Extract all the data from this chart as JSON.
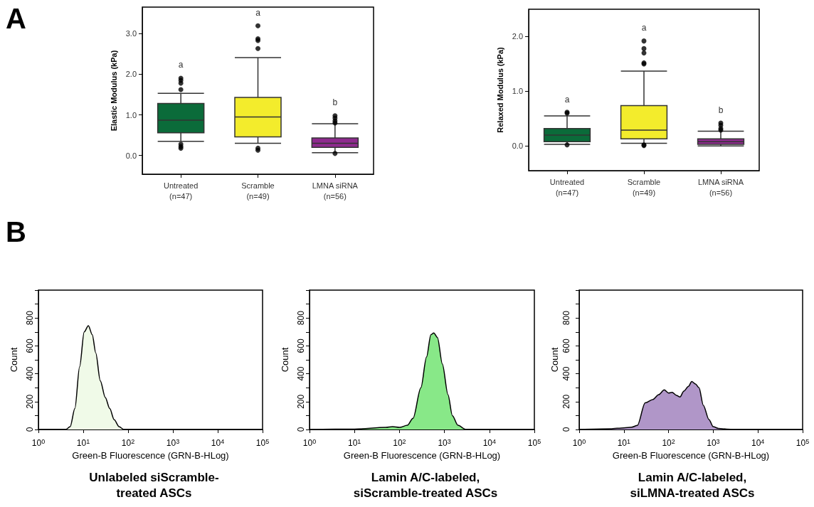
{
  "chart_data": [
    {
      "type": "box",
      "ylabel": "Elastic Modulus (kPa)",
      "categories": [
        "Untreated\n(n=47)",
        "Scramble\n(n=49)",
        "LMNA siRNA\n(n=56)"
      ],
      "colors": [
        "#0b6b3a",
        "#f3ec2c",
        "#8e2a8e"
      ],
      "boxes": [
        {
          "low": 0.35,
          "q1": 0.56,
          "median": 0.87,
          "q3": 1.28,
          "high": 1.53,
          "outliers": [
            1.9,
            1.85,
            1.78,
            1.62,
            0.28,
            0.22,
            0.18
          ]
        },
        {
          "low": 0.3,
          "q1": 0.46,
          "median": 0.95,
          "q3": 1.43,
          "high": 2.41,
          "outliers": [
            3.19,
            2.87,
            2.83,
            2.63,
            0.18,
            0.13
          ]
        },
        {
          "low": 0.07,
          "q1": 0.2,
          "median": 0.3,
          "q3": 0.43,
          "high": 0.78,
          "outliers": [
            0.98,
            0.92,
            0.85,
            0.8,
            0.05
          ]
        }
      ],
      "ylim": [
        -0.46,
        3.65
      ],
      "yticks": [
        {
          "value": 0,
          "label": "0.0"
        },
        {
          "value": 1,
          "label": "1.0"
        },
        {
          "value": 2,
          "label": "2.0"
        },
        {
          "value": 3,
          "label": "3.0"
        }
      ],
      "annotations": [
        "A",
        "a",
        "a",
        "b"
      ]
    },
    {
      "type": "box",
      "ylabel": "Relaxed Modulus (kPa)",
      "categories": [
        "Untreated\n(n=47)",
        "Scramble\n(n=49)",
        "LMNA siRNA\n(n=56)"
      ],
      "colors": [
        "#0b6b3a",
        "#f3ec2c",
        "#8e2a8e"
      ],
      "boxes": [
        {
          "low": 0.03,
          "q1": 0.08,
          "median": 0.2,
          "q3": 0.32,
          "high": 0.55,
          "outliers": [
            0.62,
            0.6,
            0.02
          ]
        },
        {
          "low": 0.05,
          "q1": 0.13,
          "median": 0.29,
          "q3": 0.74,
          "high": 1.37,
          "outliers": [
            1.92,
            1.78,
            1.7,
            1.52,
            1.5,
            0.02,
            0.01
          ]
        },
        {
          "low": 0.0,
          "q1": 0.03,
          "median": 0.08,
          "q3": 0.13,
          "high": 0.27,
          "outliers": [
            0.42,
            0.38,
            0.32,
            0.29
          ]
        }
      ],
      "ylim": [
        -0.45,
        2.5
      ],
      "yticks": [
        {
          "value": 0,
          "label": "0.0"
        },
        {
          "value": 1,
          "label": "1.0"
        },
        {
          "value": 2,
          "label": "2.0"
        }
      ],
      "annotations": [
        "a",
        "a",
        "b"
      ]
    },
    {
      "type": "area",
      "title": "Unlabeled siScramble-\ntreated ASCs",
      "xlabel": "Green-B Fluorescence (GRN-B-HLog)",
      "ylabel": "Count",
      "log": "x",
      "x": [
        1,
        4.1,
        5.1,
        6.5,
        8.3,
        10.5,
        13,
        15.9,
        19,
        24,
        31,
        39,
        49,
        63,
        80,
        100000
      ],
      "series": [
        {
          "color": "#f0fae8",
          "values": [
            0,
            0,
            20,
            150,
            450,
            700,
            745,
            680,
            550,
            350,
            230,
            150,
            70,
            20,
            0,
            0
          ]
        }
      ],
      "xlim": [
        1,
        100000
      ],
      "xticks": [
        {
          "value": 1,
          "label": "10$^{0}$"
        },
        {
          "value": 10,
          "label": "10$^{1}$"
        },
        {
          "value": 100,
          "label": "10$^{2}$"
        },
        {
          "value": 1000,
          "label": "10$^{3}$"
        },
        {
          "value": 10000,
          "label": "10$^{4}$"
        },
        {
          "value": 100000,
          "label": "10$^{5}$"
        }
      ],
      "ylim": [
        0,
        1000
      ],
      "yticks": [
        0,
        {
          "value": 100,
          "label": null
        },
        200,
        {
          "value": 300,
          "label": null
        },
        400,
        {
          "value": 500,
          "label": null
        },
        600,
        {
          "value": 700,
          "label": null
        },
        800,
        {
          "value": 900,
          "label": null
        },
        {
          "value": 1000,
          "label": null
        }
      ],
      "annotations": [
        "B"
      ]
    },
    {
      "type": "area",
      "title": "Lamin A/C-labeled,\nsiScramble-treated ASCs",
      "xlabel": "Green-B Fluorescence (GRN-B-HLog)",
      "ylabel": "Count",
      "log": "x",
      "x": [
        1,
        10,
        50,
        70,
        100,
        150,
        200,
        300,
        400,
        500,
        580,
        700,
        900,
        1200,
        1500,
        2000,
        3000,
        100000
      ],
      "series": [
        {
          "color": "#88e888",
          "values": [
            0,
            3,
            15,
            20,
            15,
            30,
            80,
            300,
            520,
            680,
            693,
            660,
            470,
            250,
            100,
            30,
            0,
            0
          ]
        }
      ],
      "xlim": [
        1,
        100000
      ],
      "xticks": [
        {
          "value": 1,
          "label": "10$^{0}$"
        },
        {
          "value": 10,
          "label": "10$^{1}$"
        },
        {
          "value": 100,
          "label": "10$^{2}$"
        },
        {
          "value": 1000,
          "label": "10$^{3}$"
        },
        {
          "value": 10000,
          "label": "10$^{4}$"
        },
        {
          "value": 100000,
          "label": "10$^{5}$"
        }
      ],
      "ylim": [
        0,
        1000
      ],
      "yticks": [
        0,
        {
          "value": 100,
          "label": null
        },
        200,
        {
          "value": 300,
          "label": null
        },
        400,
        {
          "value": 500,
          "label": null
        },
        600,
        {
          "value": 700,
          "label": null
        },
        800,
        {
          "value": 900,
          "label": null
        },
        {
          "value": 1000,
          "label": null
        }
      ]
    },
    {
      "type": "area",
      "title": "Lamin A/C-labeled,\nsiLMNA-treated ASCs",
      "xlabel": "Green-B Fluorescence (GRN-B-HLog)",
      "ylabel": "Count",
      "log": "x",
      "x": [
        1,
        5,
        10,
        15,
        20,
        30,
        45,
        60,
        80,
        100,
        120,
        150,
        180,
        220,
        280,
        330,
        400,
        480,
        600,
        800,
        1000,
        1300,
        2000,
        3000,
        100000
      ],
      "series": [
        {
          "color": "#b096c8",
          "values": [
            0,
            5,
            12,
            17,
            29,
            191,
            216,
            250,
            284,
            262,
            267,
            245,
            233,
            276,
            310,
            344,
            327,
            300,
            174,
            72,
            20,
            8,
            3,
            0,
            0
          ]
        }
      ],
      "xlim": [
        1,
        100000
      ],
      "xticks": [
        {
          "value": 1,
          "label": "10$^{0}$"
        },
        {
          "value": 10,
          "label": "10$^{1}$"
        },
        {
          "value": 100,
          "label": "10$^{2}$"
        },
        {
          "value": 1000,
          "label": "10$^{3}$"
        },
        {
          "value": 10000,
          "label": "10$^{4}$"
        },
        {
          "value": 100000,
          "label": "10$^{5}$"
        }
      ],
      "ylim": [
        0,
        1000
      ],
      "yticks": [
        0,
        {
          "value": 100,
          "label": null
        },
        200,
        {
          "value": 300,
          "label": null
        },
        400,
        {
          "value": 500,
          "label": null
        },
        600,
        {
          "value": 700,
          "label": null
        },
        800,
        {
          "value": 900,
          "label": null
        },
        {
          "value": 1000,
          "label": null
        }
      ]
    }
  ]
}
